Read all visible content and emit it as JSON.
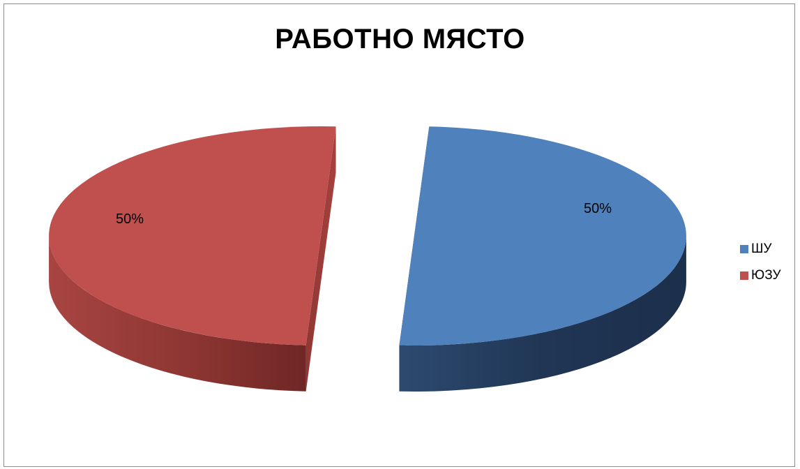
{
  "chart_data": {
    "type": "pie",
    "style": "3d-exploded",
    "title": "РАБОТНО МЯСТО",
    "legend_position": "right",
    "slices": [
      {
        "name": "ШУ",
        "value": 50,
        "label": "50%",
        "color": "#4f81bd"
      },
      {
        "name": "ЮЗУ",
        "value": 50,
        "label": "50%",
        "color": "#c0504d"
      }
    ]
  }
}
